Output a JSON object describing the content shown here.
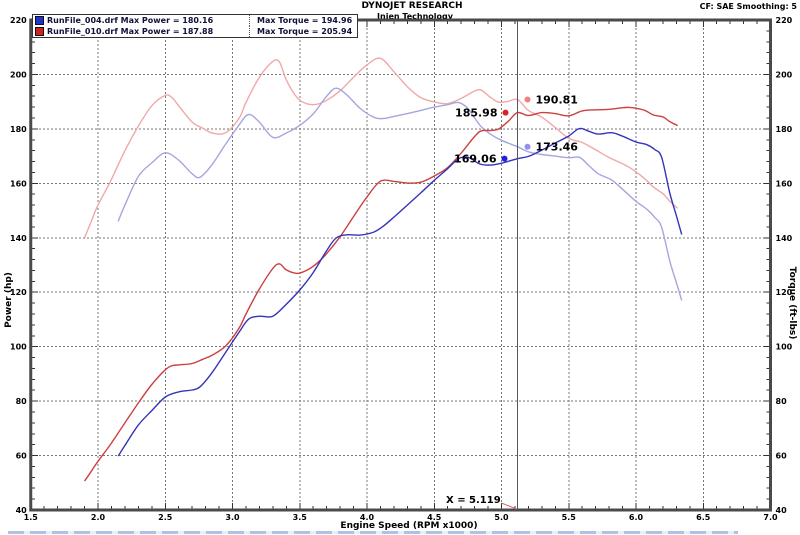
{
  "header": {
    "title": "DYNOJET RESEARCH",
    "subtitle": "Injen Technology",
    "correction": "CF: SAE  Smoothing: 5"
  },
  "legend": {
    "rows": [
      {
        "left": "RunFile_004.drf Max Power = 180.16",
        "right": "Max Torque = 194.96",
        "color": "#2233cc"
      },
      {
        "left": "RunFile_010.drf Max Power = 187.88",
        "right": "Max Torque = 205.94",
        "color": "#cc2222"
      }
    ]
  },
  "axes": {
    "x_title": "Engine Speed (RPM x1000)",
    "y_left_title": "Power (hp)",
    "y_right_title": "Torque (ft-lbs)"
  },
  "cursor": {
    "x_label": "X = 5.119"
  },
  "chart_data": {
    "type": "line",
    "title": "Injen Technology dyno runs - DYNOJET RESEARCH, CF: SAE, Smoothing 5",
    "xlabel": "Engine Speed (RPM x1000)",
    "ylabel_left": "Power (hp)",
    "ylabel_right": "Torque (ft-lbs)",
    "xlim": [
      1.5,
      7.0
    ],
    "ylim": [
      40,
      220
    ],
    "x_major_step": 0.5,
    "x_minor_step": 0.1,
    "y_major_step": 20,
    "y_minor_step": 4,
    "grid": true,
    "x_ticks": [
      1.5,
      2.0,
      2.5,
      3.0,
      3.5,
      4.0,
      4.5,
      5.0,
      5.5,
      6.0,
      6.5,
      7.0
    ],
    "y_ticks": [
      40,
      60,
      80,
      100,
      120,
      140,
      160,
      180,
      200,
      220
    ],
    "runs": [
      {
        "file": "RunFile_004.drf",
        "max_power_hp": 180.16,
        "max_torque_ftlbs": 194.96,
        "color": "#2233cc"
      },
      {
        "file": "RunFile_010.drf",
        "max_power_hp": 187.88,
        "max_torque_ftlbs": 205.94,
        "color": "#cc2222"
      }
    ],
    "series": [
      {
        "name": "RunFile_010.drf Torque (ft-lbs)",
        "axis": "torque",
        "color": "#f0a8a8",
        "width": 1.4,
        "points": [
          [
            1.9,
            140
          ],
          [
            1.95,
            146
          ],
          [
            2.0,
            152
          ],
          [
            2.1,
            161.5
          ],
          [
            2.2,
            172
          ],
          [
            2.3,
            181
          ],
          [
            2.4,
            188.5
          ],
          [
            2.5,
            192.3
          ],
          [
            2.55,
            191.5
          ],
          [
            2.6,
            188.5
          ],
          [
            2.7,
            182.5
          ],
          [
            2.78,
            180.2
          ],
          [
            2.85,
            178.5
          ],
          [
            2.95,
            178.6
          ],
          [
            3.05,
            184
          ],
          [
            3.1,
            189.7
          ],
          [
            3.2,
            199
          ],
          [
            3.3,
            204.8
          ],
          [
            3.35,
            204.5
          ],
          [
            3.4,
            198
          ],
          [
            3.48,
            191.5
          ],
          [
            3.55,
            189.3
          ],
          [
            3.62,
            189
          ],
          [
            3.7,
            190.5
          ],
          [
            3.8,
            194
          ],
          [
            3.9,
            199
          ],
          [
            4.0,
            203.5
          ],
          [
            4.1,
            205.94
          ],
          [
            4.2,
            201
          ],
          [
            4.3,
            195.5
          ],
          [
            4.4,
            191.5
          ],
          [
            4.5,
            189.9
          ],
          [
            4.6,
            189.3
          ],
          [
            4.7,
            191.2
          ],
          [
            4.8,
            193.9
          ],
          [
            4.85,
            194.2
          ],
          [
            4.92,
            191.5
          ],
          [
            4.98,
            189.8
          ],
          [
            5.05,
            190.1
          ],
          [
            5.119,
            190.81
          ],
          [
            5.2,
            186.8
          ],
          [
            5.3,
            184.3
          ],
          [
            5.4,
            180.5
          ],
          [
            5.5,
            176.5
          ],
          [
            5.6,
            175
          ],
          [
            5.7,
            172.3
          ],
          [
            5.8,
            169.5
          ],
          [
            5.9,
            167.2
          ],
          [
            5.95,
            165.88
          ],
          [
            6.0,
            164.2
          ],
          [
            6.07,
            161.5
          ],
          [
            6.13,
            158.6
          ],
          [
            6.2,
            156.2
          ],
          [
            6.25,
            153.5
          ],
          [
            6.31,
            150.8
          ]
        ]
      },
      {
        "name": "RunFile_004.drf Torque (ft-lbs)",
        "axis": "torque",
        "color": "#a6a6de",
        "width": 1.4,
        "points": [
          [
            2.15,
            146
          ],
          [
            2.2,
            152
          ],
          [
            2.3,
            162.5
          ],
          [
            2.4,
            167.5
          ],
          [
            2.5,
            171.2
          ],
          [
            2.6,
            168.5
          ],
          [
            2.7,
            163.5
          ],
          [
            2.76,
            162.3
          ],
          [
            2.85,
            167
          ],
          [
            2.95,
            174.5
          ],
          [
            3.05,
            181.5
          ],
          [
            3.12,
            185.3
          ],
          [
            3.2,
            182.5
          ],
          [
            3.3,
            176.9
          ],
          [
            3.4,
            178.5
          ],
          [
            3.5,
            181.3
          ],
          [
            3.6,
            185.5
          ],
          [
            3.7,
            192
          ],
          [
            3.77,
            194.96
          ],
          [
            3.85,
            192.5
          ],
          [
            3.95,
            187.5
          ],
          [
            4.05,
            184.3
          ],
          [
            4.12,
            183.8
          ],
          [
            4.2,
            184.6
          ],
          [
            4.3,
            185.6
          ],
          [
            4.4,
            186.8
          ],
          [
            4.5,
            188
          ],
          [
            4.6,
            188.9
          ],
          [
            4.68,
            189.7
          ],
          [
            4.75,
            187.5
          ],
          [
            4.84,
            181.3
          ],
          [
            4.92,
            178
          ],
          [
            5.0,
            175.8
          ],
          [
            5.119,
            173.46
          ],
          [
            5.2,
            171.6
          ],
          [
            5.3,
            170.6
          ],
          [
            5.4,
            170
          ],
          [
            5.5,
            169.4
          ],
          [
            5.58,
            169.55
          ],
          [
            5.65,
            166.5
          ],
          [
            5.72,
            163.5
          ],
          [
            5.82,
            161.2
          ],
          [
            5.9,
            157.8
          ],
          [
            6.0,
            153.4
          ],
          [
            6.08,
            150.5
          ],
          [
            6.14,
            147.5
          ],
          [
            6.19,
            143.9
          ],
          [
            6.25,
            131.7
          ],
          [
            6.3,
            123.5
          ],
          [
            6.34,
            117
          ]
        ]
      },
      {
        "name": "RunFile_010.drf Power (hp)",
        "axis": "power",
        "color": "#cc4040",
        "width": 1.4,
        "points": [
          [
            1.9,
            50.6
          ],
          [
            1.95,
            54.2
          ],
          [
            2.0,
            57.9
          ],
          [
            2.1,
            64.6
          ],
          [
            2.2,
            72
          ],
          [
            2.3,
            79.3
          ],
          [
            2.4,
            86.1
          ],
          [
            2.5,
            91.5
          ],
          [
            2.55,
            93
          ],
          [
            2.6,
            93.3
          ],
          [
            2.7,
            93.8
          ],
          [
            2.78,
            95.4
          ],
          [
            2.85,
            96.9
          ],
          [
            2.95,
            100.3
          ],
          [
            3.05,
            106.9
          ],
          [
            3.1,
            112
          ],
          [
            3.2,
            121.2
          ],
          [
            3.3,
            128.7
          ],
          [
            3.35,
            130.4
          ],
          [
            3.4,
            128.2
          ],
          [
            3.48,
            126.9
          ],
          [
            3.55,
            128
          ],
          [
            3.62,
            130.3
          ],
          [
            3.7,
            134.2
          ],
          [
            3.8,
            140.4
          ],
          [
            3.9,
            147.8
          ],
          [
            4.0,
            155
          ],
          [
            4.1,
            160.8
          ],
          [
            4.2,
            160.7
          ],
          [
            4.3,
            160.1
          ],
          [
            4.4,
            160.4
          ],
          [
            4.5,
            162.7
          ],
          [
            4.6,
            165.8
          ],
          [
            4.7,
            171.1
          ],
          [
            4.8,
            177.2
          ],
          [
            4.85,
            179.3
          ],
          [
            4.92,
            179.4
          ],
          [
            4.98,
            180
          ],
          [
            5.05,
            182.8
          ],
          [
            5.119,
            185.98
          ],
          [
            5.2,
            184.9
          ],
          [
            5.3,
            186
          ],
          [
            5.4,
            185.6
          ],
          [
            5.5,
            184.8
          ],
          [
            5.6,
            186.6
          ],
          [
            5.7,
            187
          ],
          [
            5.8,
            187.2
          ],
          [
            5.9,
            187.8
          ],
          [
            5.95,
            187.88
          ],
          [
            6.0,
            187.6
          ],
          [
            6.07,
            186.7
          ],
          [
            6.13,
            185.1
          ],
          [
            6.2,
            184.4
          ],
          [
            6.25,
            182.7
          ],
          [
            6.31,
            181.2
          ]
        ]
      },
      {
        "name": "RunFile_004.drf Power (hp)",
        "axis": "power",
        "color": "#3434bb",
        "width": 1.4,
        "points": [
          [
            2.15,
            59.8
          ],
          [
            2.2,
            63.7
          ],
          [
            2.3,
            71.2
          ],
          [
            2.4,
            76.5
          ],
          [
            2.5,
            81.5
          ],
          [
            2.6,
            83.4
          ],
          [
            2.7,
            84.1
          ],
          [
            2.76,
            85.3
          ],
          [
            2.85,
            90.6
          ],
          [
            2.95,
            98
          ],
          [
            3.05,
            105.4
          ],
          [
            3.12,
            110.1
          ],
          [
            3.2,
            111.2
          ],
          [
            3.3,
            111.2
          ],
          [
            3.4,
            115.6
          ],
          [
            3.5,
            120.8
          ],
          [
            3.6,
            127.2
          ],
          [
            3.7,
            135.3
          ],
          [
            3.77,
            139.9
          ],
          [
            3.85,
            141.1
          ],
          [
            3.95,
            141
          ],
          [
            4.05,
            142.1
          ],
          [
            4.12,
            144.2
          ],
          [
            4.2,
            147.6
          ],
          [
            4.3,
            152
          ],
          [
            4.4,
            156.5
          ],
          [
            4.5,
            161.1
          ],
          [
            4.6,
            165.4
          ],
          [
            4.68,
            169
          ],
          [
            4.75,
            169.6
          ],
          [
            4.84,
            167.1
          ],
          [
            4.92,
            166.7
          ],
          [
            5.0,
            167.4
          ],
          [
            5.119,
            169.06
          ],
          [
            5.2,
            169.9
          ],
          [
            5.3,
            172.2
          ],
          [
            5.4,
            174.8
          ],
          [
            5.5,
            177.4
          ],
          [
            5.58,
            180.16
          ],
          [
            5.65,
            179.1
          ],
          [
            5.72,
            178.1
          ],
          [
            5.82,
            178.6
          ],
          [
            5.9,
            177.3
          ],
          [
            6.0,
            175.2
          ],
          [
            6.08,
            174.2
          ],
          [
            6.14,
            172.4
          ],
          [
            6.19,
            169.6
          ],
          [
            6.25,
            156.7
          ],
          [
            6.3,
            148.1
          ],
          [
            6.34,
            141.2
          ]
        ]
      }
    ],
    "cursor": {
      "x": 5.119,
      "label": "X = 5.119",
      "markers": [
        {
          "label": "190.81",
          "value": 190.81,
          "color": "#ee8080",
          "side": "right",
          "dx": 10,
          "name": "red-torque-at-cursor"
        },
        {
          "label": "185.98",
          "value": 185.98,
          "color": "#dd2020",
          "side": "left",
          "dx": -12,
          "name": "red-power-at-cursor"
        },
        {
          "label": "173.46",
          "value": 173.46,
          "color": "#9090ee",
          "side": "right",
          "dx": 10,
          "name": "blue-torque-at-cursor"
        },
        {
          "label": "169.06",
          "value": 169.06,
          "color": "#2020dd",
          "side": "left",
          "dx": -13,
          "name": "blue-power-at-cursor"
        }
      ]
    },
    "legend_position": "top-left"
  }
}
